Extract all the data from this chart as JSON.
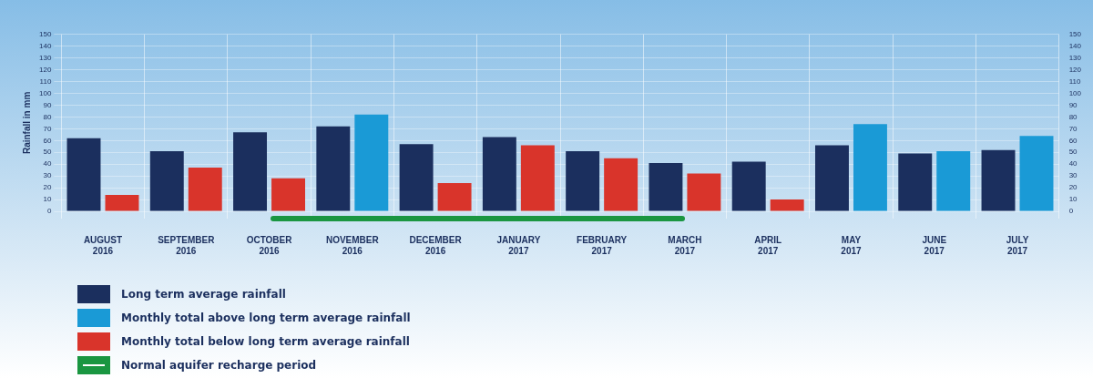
{
  "chart_data": {
    "type": "bar",
    "ylabel": "Rainfall in mm",
    "categories": [
      "AUGUST 2016",
      "SEPTEMBER 2016",
      "OCTOBER 2016",
      "NOVEMBER 2016",
      "DECEMBER 2016",
      "JANUARY 2017",
      "FEBRUARY 2017",
      "MARCH 2017",
      "APRIL 2017",
      "MAY 2017",
      "JUNE 2017",
      "JULY 2017"
    ],
    "series": [
      {
        "name": "Long term average rainfall",
        "color": "#1b2f5e",
        "values": [
          62,
          51,
          67,
          72,
          57,
          63,
          51,
          41,
          42,
          56,
          49,
          52
        ]
      },
      {
        "name": "Monthly total above long term average rainfall",
        "color": "#1a9ad6",
        "values": [
          null,
          null,
          null,
          82,
          null,
          null,
          null,
          null,
          null,
          74,
          51,
          64
        ]
      },
      {
        "name": "Monthly total below long term average rainfall",
        "color": "#d9342b",
        "values": [
          14,
          37,
          28,
          null,
          24,
          56,
          45,
          32,
          10,
          null,
          null,
          null
        ]
      }
    ],
    "annotations": [
      "Normal aquifer recharge period"
    ],
    "ylim": [
      0,
      150
    ],
    "yticks": [
      0,
      10,
      20,
      30,
      40,
      50,
      60,
      70,
      80,
      90,
      100,
      110,
      120,
      130,
      140,
      150
    ],
    "y2lim": [
      0,
      150
    ],
    "y2ticks": [
      0,
      10,
      20,
      30,
      40,
      50,
      60,
      70,
      80,
      90,
      100,
      110,
      120,
      130,
      140,
      150
    ],
    "grid": true,
    "legend": "bottom left"
  }
}
